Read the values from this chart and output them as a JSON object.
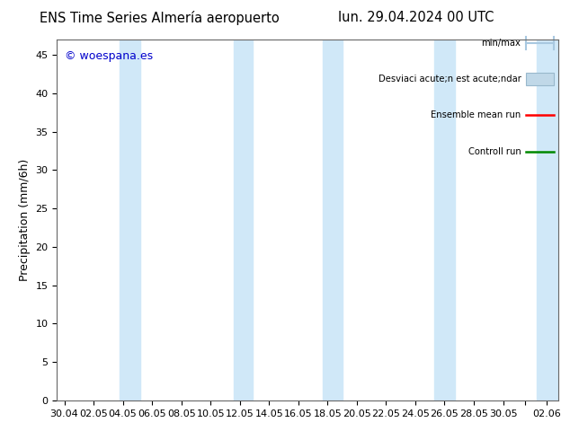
{
  "title_left": "ENS Time Series Almería aeropuerto",
  "title_right": "lun. 29.04.2024 00 UTC",
  "ylabel": "Precipitation (mm/6h)",
  "watermark": "© woespana.es",
  "background_color": "#ffffff",
  "plot_bg_color": "#ffffff",
  "ylim": [
    0,
    47
  ],
  "yticks": [
    0,
    5,
    10,
    15,
    20,
    25,
    30,
    35,
    40,
    45
  ],
  "xtick_labels": [
    "30.04",
    "02.05",
    "04.05",
    "06.05",
    "08.05",
    "10.05",
    "12.05",
    "14.05",
    "16.05",
    "18.05",
    "20.05",
    "22.05",
    "24.05",
    "26.05",
    "28.05",
    "30.05",
    "",
    "02.06"
  ],
  "xtick_positions": [
    0,
    2,
    4,
    6,
    8,
    10,
    12,
    14,
    16,
    18,
    20,
    22,
    24,
    26,
    28,
    30,
    31.5,
    33
  ],
  "xlim": [
    -0.5,
    33.8
  ],
  "shade_color": "#d0e8f8",
  "shade_bands": [
    [
      3.8,
      5.2
    ],
    [
      11.6,
      12.9
    ],
    [
      17.7,
      19.0
    ],
    [
      25.3,
      26.7
    ],
    [
      32.3,
      33.8
    ]
  ],
  "legend_label1": "min/max",
  "legend_label2": "Desviaci acute;n est acute;ndar",
  "legend_label3": "Ensemble mean run",
  "legend_label4": "Controll run",
  "legend_color1": "#a8c8e0",
  "legend_color2": "#c0d8e8",
  "legend_color3": "#ff0000",
  "legend_color4": "#008800",
  "title_fontsize": 10.5,
  "tick_fontsize": 8,
  "ylabel_fontsize": 9,
  "watermark_color": "#0000cc",
  "watermark_fontsize": 9
}
